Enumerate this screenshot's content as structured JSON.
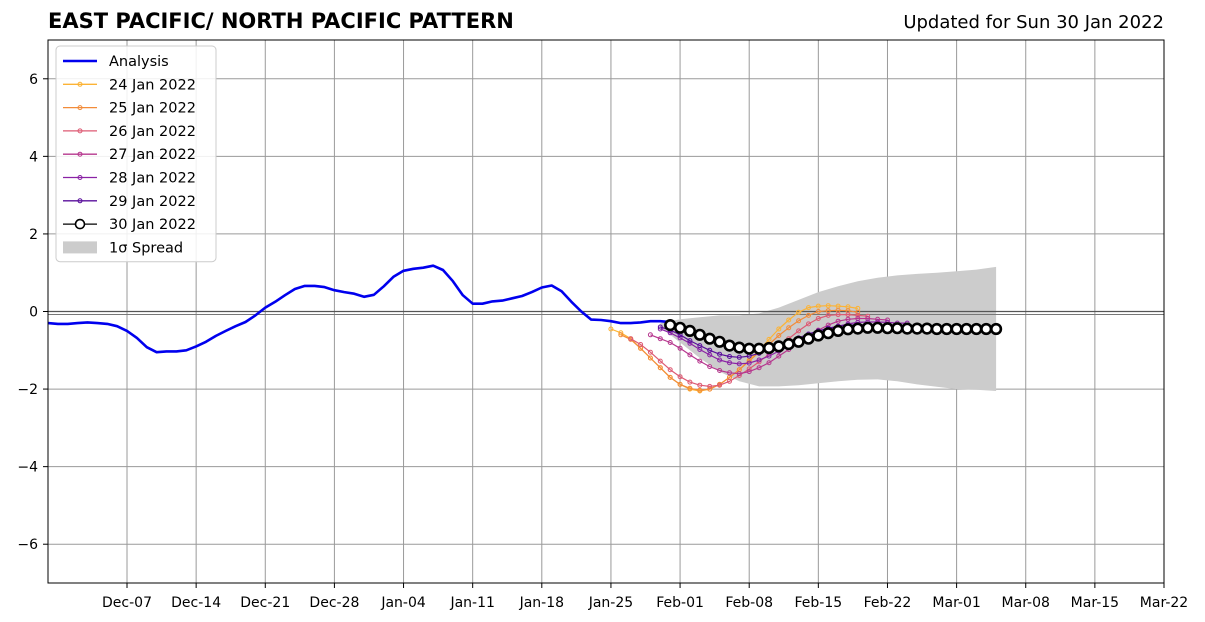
{
  "chart_data": {
    "type": "line",
    "title": "EAST PACIFIC/ NORTH PACIFIC PATTERN",
    "subtitle": "Updated for Sun 30 Jan 2022",
    "xlabel": "",
    "ylabel": "",
    "xlim": [
      "2021-11-29",
      "2022-03-22"
    ],
    "ylim": [
      -7,
      7
    ],
    "x_ticks": [
      "Dec-07",
      "Dec-14",
      "Dec-21",
      "Dec-28",
      "Jan-04",
      "Jan-11",
      "Jan-18",
      "Jan-25",
      "Feb-01",
      "Feb-08",
      "Feb-15",
      "Feb-22",
      "Mar-01",
      "Mar-08",
      "Mar-15",
      "Mar-22"
    ],
    "x_tick_dates": [
      "2021-12-07",
      "2021-12-14",
      "2021-12-21",
      "2021-12-28",
      "2022-01-04",
      "2022-01-11",
      "2022-01-18",
      "2022-01-25",
      "2022-02-01",
      "2022-02-08",
      "2022-02-15",
      "2022-02-22",
      "2022-03-01",
      "2022-03-08",
      "2022-03-15",
      "2022-03-22"
    ],
    "y_ticks": [
      -6,
      -4,
      -2,
      0,
      2,
      4,
      6
    ],
    "y_tick_labels": [
      "−6",
      "−4",
      "−2",
      "0",
      "2",
      "4",
      "6"
    ],
    "grid": true,
    "legend_position": "upper-left",
    "spread_label": "1σ Spread",
    "spread_color": "#cccccc",
    "spread": {
      "start": "2022-01-30",
      "upper": [
        -0.3,
        -0.2,
        -0.15,
        -0.1,
        -0.1,
        -0.05,
        0.1,
        0.3,
        0.5,
        0.65,
        0.78,
        0.87,
        0.93,
        0.97,
        1.0,
        1.04,
        1.08,
        1.15
      ],
      "lower": [
        -0.4,
        -0.8,
        -1.2,
        -1.55,
        -1.8,
        -1.93,
        -1.93,
        -1.9,
        -1.85,
        -1.8,
        -1.76,
        -1.75,
        -1.8,
        -1.88,
        -1.94,
        -2.0,
        -2.02,
        -2.05
      ],
      "step_days": 2
    },
    "series": [
      {
        "name": "Analysis",
        "color": "#0000ee",
        "start": "2021-11-29",
        "values": [
          -0.3,
          -0.32,
          -0.32,
          -0.3,
          -0.28,
          -0.3,
          -0.32,
          -0.38,
          -0.5,
          -0.68,
          -0.92,
          -1.05,
          -1.03,
          -1.03,
          -1.0,
          -0.9,
          -0.78,
          -0.63,
          -0.5,
          -0.38,
          -0.27,
          -0.1,
          0.1,
          0.25,
          0.42,
          0.58,
          0.66,
          0.66,
          0.63,
          0.55,
          0.5,
          0.46,
          0.38,
          0.43,
          0.65,
          0.9,
          1.05,
          1.1,
          1.13,
          1.18,
          1.07,
          0.78,
          0.42,
          0.2,
          0.2,
          0.26,
          0.28,
          0.34,
          0.4,
          0.5,
          0.62,
          0.67,
          0.52,
          0.25,
          0.0,
          -0.21,
          -0.22,
          -0.25,
          -0.3,
          -0.3,
          -0.28,
          -0.25,
          -0.25,
          -0.27
        ]
      },
      {
        "name": "24 Jan 2022",
        "color": "#fcb335",
        "start": "2022-01-25",
        "values": [
          -0.45,
          -0.55,
          -0.7,
          -0.95,
          -1.2,
          -1.45,
          -1.7,
          -1.88,
          -2.0,
          -2.05,
          -2.0,
          -1.88,
          -1.7,
          -1.5,
          -1.25,
          -1.0,
          -0.72,
          -0.45,
          -0.22,
          -0.02,
          0.1,
          0.14,
          0.15,
          0.14,
          0.12,
          0.08
        ]
      },
      {
        "name": "25 Jan 2022",
        "color": "#f28c3a",
        "start": "2022-01-26",
        "values": [
          -0.6,
          -0.72,
          -0.95,
          -1.2,
          -1.45,
          -1.7,
          -1.88,
          -1.98,
          -2.03,
          -2.0,
          -1.88,
          -1.7,
          -1.5,
          -1.28,
          -1.05,
          -0.85,
          -0.62,
          -0.42,
          -0.24,
          -0.1,
          0.0,
          0.02,
          0.03,
          0.02,
          -0.02
        ]
      },
      {
        "name": "26 Jan 2022",
        "color": "#dd5a73",
        "start": "2022-01-27",
        "values": [
          -0.7,
          -0.85,
          -1.05,
          -1.28,
          -1.5,
          -1.68,
          -1.82,
          -1.9,
          -1.93,
          -1.9,
          -1.8,
          -1.65,
          -1.48,
          -1.3,
          -1.1,
          -0.9,
          -0.7,
          -0.5,
          -0.32,
          -0.18,
          -0.1,
          -0.08,
          -0.08,
          -0.1,
          -0.12
        ]
      },
      {
        "name": "27 Jan 2022",
        "color": "#b6378e",
        "start": "2022-01-29",
        "values": [
          -0.6,
          -0.7,
          -0.8,
          -0.95,
          -1.12,
          -1.28,
          -1.42,
          -1.52,
          -1.58,
          -1.6,
          -1.55,
          -1.45,
          -1.32,
          -1.15,
          -0.98,
          -0.82,
          -0.65,
          -0.48,
          -0.35,
          -0.25,
          -0.2,
          -0.18,
          -0.18,
          -0.2,
          -0.22
        ]
      },
      {
        "name": "28 Jan 2022",
        "color": "#8a22a5",
        "start": "2022-01-30",
        "values": [
          -0.45,
          -0.55,
          -0.68,
          -0.82,
          -0.98,
          -1.12,
          -1.25,
          -1.32,
          -1.35,
          -1.33,
          -1.25,
          -1.15,
          -1.02,
          -0.9,
          -0.78,
          -0.65,
          -0.55,
          -0.46,
          -0.38,
          -0.32,
          -0.28,
          -0.27,
          -0.27,
          -0.28,
          -0.3,
          -0.3
        ]
      },
      {
        "name": "29 Jan 2022",
        "color": "#5a0f9c",
        "start": "2022-01-30",
        "values": [
          -0.4,
          -0.48,
          -0.6,
          -0.75,
          -0.88,
          -1.0,
          -1.1,
          -1.16,
          -1.18,
          -1.15,
          -1.08,
          -0.98,
          -0.88,
          -0.78,
          -0.68,
          -0.58,
          -0.5,
          -0.43,
          -0.38,
          -0.35,
          -0.34,
          -0.35,
          -0.36,
          -0.38,
          -0.39,
          -0.4,
          -0.4
        ]
      },
      {
        "name": "30 Jan 2022",
        "color": "#000000",
        "start": "2022-01-31",
        "values": [
          -0.35,
          -0.42,
          -0.5,
          -0.6,
          -0.7,
          -0.78,
          -0.88,
          -0.93,
          -0.96,
          -0.96,
          -0.94,
          -0.9,
          -0.84,
          -0.78,
          -0.7,
          -0.62,
          -0.56,
          -0.5,
          -0.46,
          -0.44,
          -0.42,
          -0.42,
          -0.43,
          -0.43,
          -0.44,
          -0.44,
          -0.44,
          -0.45,
          -0.45,
          -0.45,
          -0.45,
          -0.45,
          -0.45,
          -0.45
        ]
      }
    ]
  }
}
